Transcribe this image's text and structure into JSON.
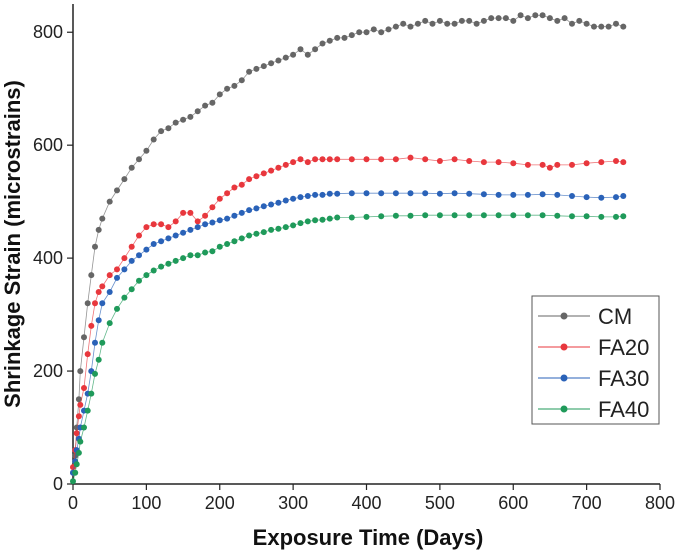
{
  "chart_data": {
    "type": "scatter",
    "xlabel": "Exposure Time (Days)",
    "ylabel": "Shrinkage Strain (microstrains)",
    "xlim": [
      0,
      800
    ],
    "ylim": [
      0,
      850
    ],
    "xticks": [
      "0",
      "100",
      "200",
      "300",
      "400",
      "500",
      "600",
      "700",
      "800"
    ],
    "yticks": [
      "0",
      "200",
      "400",
      "600",
      "800"
    ],
    "grid": false,
    "legend_position": "bottom-right",
    "series": [
      {
        "name": "CM",
        "color": "#666666",
        "x": [
          0,
          3,
          5,
          8,
          10,
          15,
          20,
          25,
          30,
          35,
          40,
          50,
          60,
          70,
          80,
          90,
          100,
          110,
          120,
          130,
          140,
          150,
          160,
          170,
          180,
          190,
          200,
          210,
          220,
          230,
          240,
          250,
          260,
          270,
          280,
          290,
          300,
          310,
          320,
          330,
          340,
          350,
          360,
          370,
          380,
          390,
          400,
          410,
          420,
          430,
          440,
          450,
          460,
          470,
          480,
          490,
          500,
          510,
          520,
          530,
          540,
          550,
          560,
          570,
          580,
          590,
          600,
          610,
          620,
          630,
          640,
          650,
          660,
          670,
          680,
          690,
          700,
          710,
          720,
          730,
          740,
          750
        ],
        "values": [
          20,
          50,
          100,
          150,
          200,
          260,
          320,
          370,
          420,
          450,
          470,
          500,
          520,
          540,
          560,
          575,
          590,
          610,
          625,
          630,
          640,
          645,
          650,
          660,
          670,
          675,
          690,
          700,
          705,
          715,
          730,
          735,
          740,
          745,
          750,
          755,
          760,
          770,
          760,
          770,
          780,
          785,
          790,
          790,
          795,
          800,
          800,
          805,
          800,
          805,
          810,
          815,
          810,
          815,
          820,
          815,
          820,
          815,
          815,
          820,
          820,
          815,
          820,
          825,
          825,
          825,
          820,
          830,
          825,
          830,
          830,
          825,
          820,
          825,
          815,
          820,
          815,
          810,
          810,
          810,
          815,
          810
        ]
      },
      {
        "name": "FA20",
        "color": "#e8373d",
        "x": [
          0,
          3,
          5,
          8,
          10,
          15,
          20,
          25,
          30,
          35,
          40,
          50,
          60,
          70,
          80,
          90,
          100,
          110,
          120,
          130,
          140,
          150,
          160,
          170,
          180,
          190,
          200,
          210,
          220,
          230,
          240,
          250,
          260,
          270,
          280,
          290,
          300,
          310,
          320,
          330,
          340,
          350,
          360,
          380,
          400,
          420,
          440,
          460,
          480,
          500,
          520,
          540,
          560,
          580,
          600,
          620,
          640,
          650,
          660,
          680,
          700,
          720,
          740,
          750
        ],
        "values": [
          30,
          60,
          90,
          120,
          140,
          170,
          230,
          280,
          320,
          340,
          350,
          370,
          380,
          400,
          420,
          440,
          455,
          460,
          460,
          455,
          465,
          480,
          480,
          465,
          475,
          490,
          505,
          515,
          525,
          530,
          540,
          545,
          550,
          555,
          560,
          565,
          570,
          575,
          570,
          575,
          575,
          575,
          575,
          575,
          575,
          575,
          575,
          578,
          575,
          572,
          575,
          572,
          570,
          570,
          568,
          565,
          565,
          560,
          565,
          565,
          568,
          570,
          572,
          570
        ]
      },
      {
        "name": "FA30",
        "color": "#2a62b8",
        "x": [
          0,
          3,
          5,
          8,
          10,
          15,
          20,
          25,
          30,
          35,
          40,
          50,
          60,
          70,
          80,
          90,
          100,
          110,
          120,
          130,
          140,
          150,
          160,
          170,
          180,
          190,
          200,
          210,
          220,
          230,
          240,
          250,
          260,
          270,
          280,
          290,
          300,
          310,
          320,
          330,
          340,
          350,
          360,
          380,
          400,
          420,
          440,
          460,
          480,
          500,
          520,
          540,
          560,
          580,
          600,
          620,
          640,
          660,
          680,
          700,
          720,
          740,
          750
        ],
        "values": [
          20,
          40,
          60,
          80,
          100,
          130,
          160,
          200,
          250,
          290,
          320,
          340,
          365,
          380,
          395,
          405,
          415,
          425,
          430,
          435,
          440,
          445,
          450,
          455,
          460,
          463,
          467,
          470,
          475,
          480,
          485,
          488,
          492,
          495,
          498,
          502,
          505,
          508,
          510,
          512,
          512,
          514,
          514,
          515,
          515,
          515,
          515,
          515,
          515,
          514,
          515,
          514,
          513,
          512,
          512,
          512,
          513,
          512,
          510,
          508,
          507,
          508,
          510
        ]
      },
      {
        "name": "FA40",
        "color": "#1f9a5a",
        "x": [
          0,
          3,
          5,
          8,
          10,
          15,
          20,
          25,
          30,
          35,
          40,
          50,
          60,
          70,
          80,
          90,
          100,
          110,
          120,
          130,
          140,
          150,
          160,
          170,
          180,
          190,
          200,
          210,
          220,
          230,
          240,
          250,
          260,
          270,
          280,
          290,
          300,
          310,
          320,
          330,
          340,
          350,
          360,
          380,
          400,
          420,
          440,
          460,
          480,
          500,
          520,
          540,
          560,
          580,
          600,
          620,
          640,
          660,
          680,
          700,
          720,
          740,
          750
        ],
        "values": [
          5,
          20,
          35,
          55,
          75,
          100,
          130,
          160,
          195,
          220,
          250,
          285,
          310,
          330,
          345,
          360,
          370,
          378,
          385,
          390,
          395,
          400,
          405,
          405,
          410,
          412,
          420,
          425,
          430,
          435,
          440,
          443,
          446,
          450,
          452,
          455,
          458,
          462,
          465,
          467,
          468,
          470,
          472,
          472,
          473,
          474,
          475,
          475,
          476,
          476,
          476,
          476,
          476,
          476,
          476,
          476,
          476,
          475,
          474,
          474,
          473,
          473,
          474
        ]
      }
    ]
  }
}
